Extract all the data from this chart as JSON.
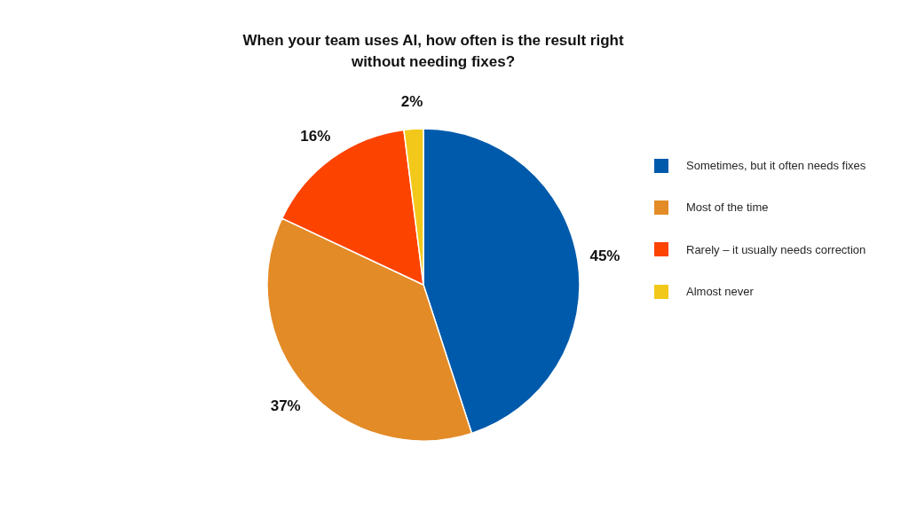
{
  "chart_data": {
    "type": "pie",
    "title": "When your team uses AI, how often is the result right without needing fixes?",
    "categories": [
      "Sometimes, but it often needs fixes",
      "Most of the time",
      "Rarely – it usually needs correction",
      "Almost never"
    ],
    "values": [
      45,
      37,
      16,
      2
    ],
    "colors": [
      "#005aab",
      "#e38b27",
      "#fc4300",
      "#f2c81b"
    ],
    "value_labels": [
      "45%",
      "37%",
      "16%",
      "2%"
    ],
    "legend": "right"
  }
}
